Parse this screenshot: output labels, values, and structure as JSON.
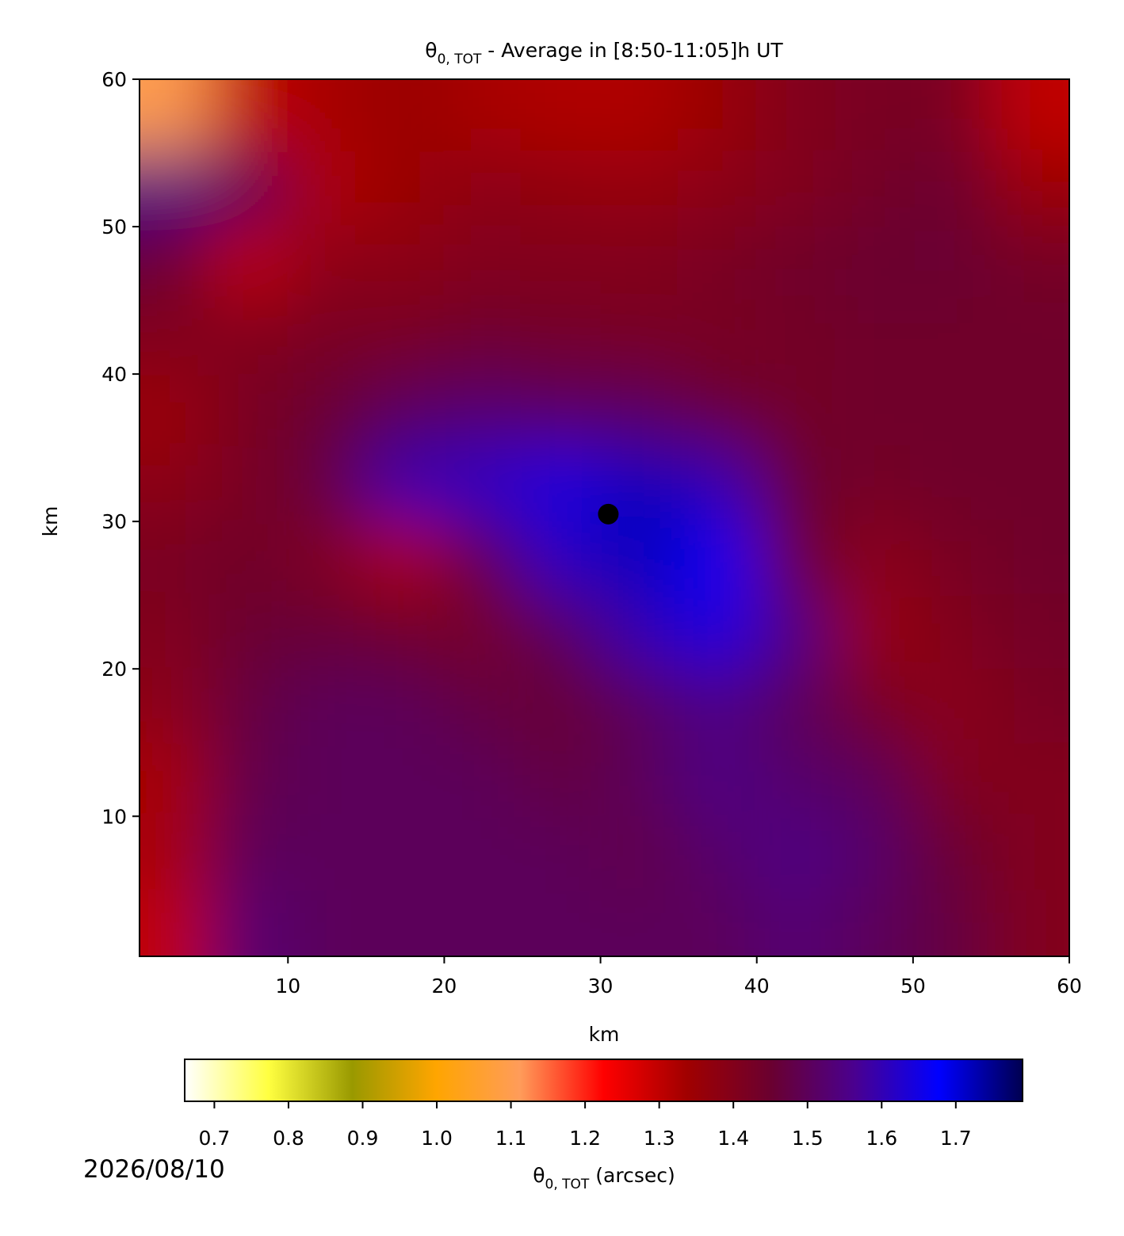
{
  "chart_data": {
    "type": "heatmap",
    "title": {
      "symbol": "θ",
      "subscript": "0, TOT",
      "rest": " - Average in [8:50-11:05]h UT"
    },
    "xlabel": "km",
    "ylabel": "km",
    "xlim": [
      0.5,
      60
    ],
    "ylim": [
      0.5,
      60
    ],
    "xticks": [
      10,
      20,
      30,
      40,
      50,
      60
    ],
    "yticks": [
      10,
      20,
      30,
      40,
      50,
      60
    ],
    "x": [
      2.5,
      7.5,
      12.5,
      17.5,
      22.5,
      27.5,
      32.5,
      37.5,
      42.5,
      47.5,
      52.5,
      57.5
    ],
    "y": [
      57.5,
      52.5,
      47.5,
      42.5,
      37.5,
      32.5,
      27.5,
      22.5,
      17.5,
      12.5,
      7.5,
      2.5
    ],
    "z": [
      [
        1.1,
        1.3,
        1.33,
        1.35,
        1.33,
        1.32,
        1.32,
        1.35,
        1.4,
        1.42,
        1.42,
        1.3
      ],
      [
        1.55,
        1.5,
        1.32,
        1.35,
        1.38,
        1.37,
        1.36,
        1.38,
        1.4,
        1.43,
        1.45,
        1.35
      ],
      [
        1.45,
        1.3,
        1.38,
        1.38,
        1.4,
        1.4,
        1.4,
        1.42,
        1.44,
        1.45,
        1.45,
        1.43
      ],
      [
        1.4,
        1.4,
        1.42,
        1.42,
        1.44,
        1.43,
        1.42,
        1.42,
        1.43,
        1.44,
        1.44,
        1.44
      ],
      [
        1.35,
        1.42,
        1.45,
        1.5,
        1.52,
        1.5,
        1.5,
        1.45,
        1.43,
        1.44,
        1.44,
        1.44
      ],
      [
        1.38,
        1.42,
        1.47,
        1.6,
        1.62,
        1.65,
        1.72,
        1.6,
        1.45,
        1.43,
        1.44,
        1.44
      ],
      [
        1.42,
        1.44,
        1.4,
        1.32,
        1.48,
        1.62,
        1.72,
        1.68,
        1.45,
        1.38,
        1.42,
        1.44
      ],
      [
        1.4,
        1.45,
        1.46,
        1.44,
        1.42,
        1.5,
        1.6,
        1.65,
        1.55,
        1.35,
        1.4,
        1.43
      ],
      [
        1.38,
        1.47,
        1.5,
        1.5,
        1.47,
        1.45,
        1.5,
        1.55,
        1.5,
        1.42,
        1.38,
        1.42
      ],
      [
        1.33,
        1.48,
        1.5,
        1.5,
        1.5,
        1.47,
        1.5,
        1.55,
        1.52,
        1.5,
        1.4,
        1.4
      ],
      [
        1.33,
        1.5,
        1.5,
        1.5,
        1.5,
        1.5,
        1.48,
        1.52,
        1.55,
        1.52,
        1.45,
        1.4
      ],
      [
        1.3,
        1.53,
        1.5,
        1.5,
        1.5,
        1.5,
        1.5,
        1.5,
        1.53,
        1.5,
        1.47,
        1.4
      ]
    ],
    "marker": {
      "x": 30.5,
      "y": 30.5,
      "color": "#000000"
    },
    "colormap": [
      "#ffffff",
      "#ffff40",
      "#999900",
      "#ffa500",
      "#ff9c5a",
      "#ff0000",
      "#a00000",
      "#6a0030",
      "#4a0090",
      "#0000ff",
      "#000050"
    ],
    "clim": [
      0.66,
      1.79
    ],
    "colorbar_ticks": [
      0.7,
      0.8,
      0.9,
      {
        "value": 1,
        "label": "1.0"
      },
      1.1,
      1.2,
      1.3,
      1.4,
      1.5,
      1.6,
      1.7
    ],
    "colorbar_label": {
      "symbol": "θ",
      "subscript": "0, TOT",
      "rest": " (arcsec)"
    }
  },
  "date": "2026/08/10"
}
